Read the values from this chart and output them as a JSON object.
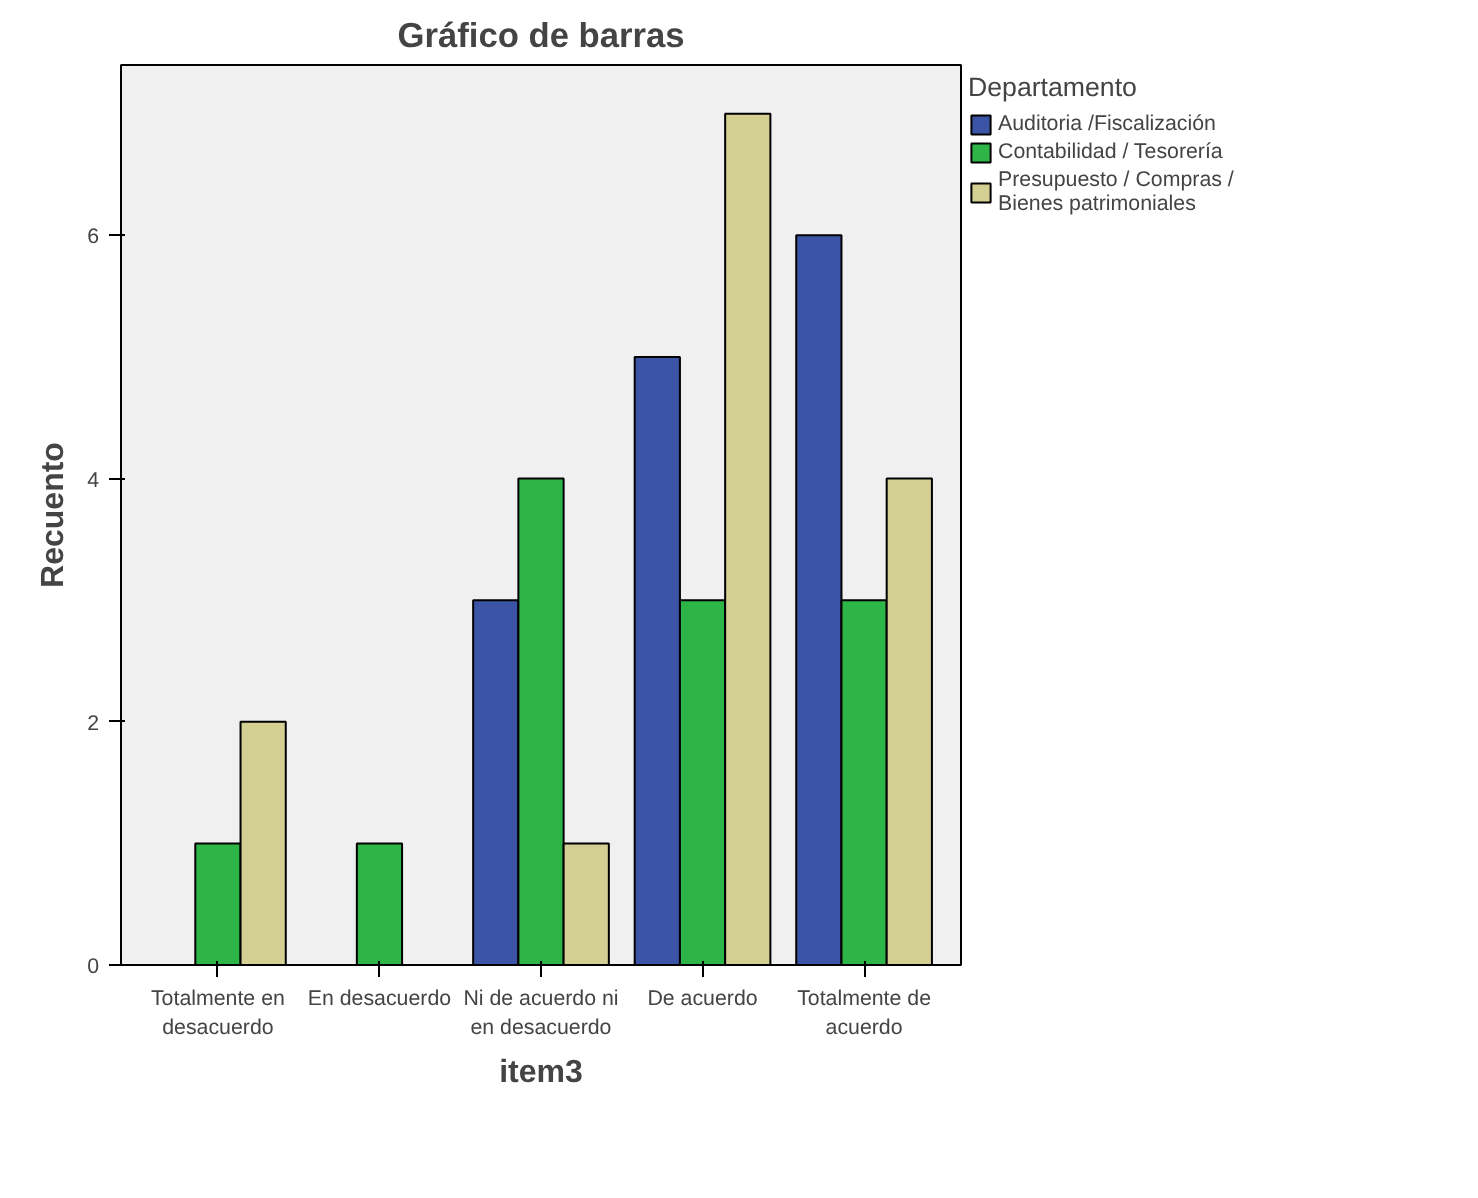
{
  "chart_data": {
    "type": "bar",
    "title": "Gráfico de barras",
    "xlabel": "item3",
    "ylabel": "Recuento",
    "legend_title": "Departamento",
    "categories": [
      "Totalmente en\ndesacuerdo",
      "En desacuerdo",
      "Ni de acuerdo ni\nen desacuerdo",
      "De acuerdo",
      "Totalmente de\nacuerdo"
    ],
    "series": [
      {
        "name": "Auditoria /Fiscalización",
        "color": "#3b54a6",
        "values": [
          null,
          null,
          3,
          5,
          6
        ]
      },
      {
        "name": "Contabilidad / Tesorería",
        "color": "#2db548",
        "values": [
          1,
          1,
          4,
          3,
          3
        ]
      },
      {
        "name": "Presupuesto / Compras /\nBienes patrimoniales",
        "color": "#d4cf93",
        "values": [
          2,
          null,
          1,
          7,
          4
        ]
      }
    ],
    "ylim": [
      0,
      7.4
    ],
    "yticks": [
      0,
      2,
      4,
      6
    ],
    "grid": false,
    "legend": "right"
  }
}
